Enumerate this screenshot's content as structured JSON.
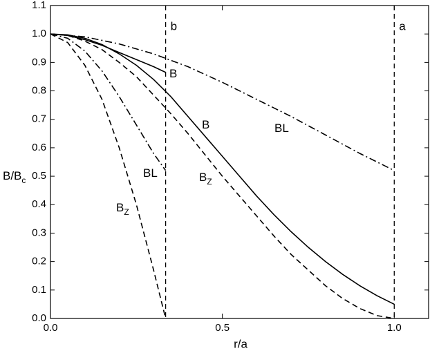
{
  "chart_data": {
    "type": "line",
    "xlabel": "r/a",
    "ylabel": {
      "text": "B/B",
      "sub": "c"
    },
    "xlim": [
      0,
      1.1
    ],
    "ylim": [
      0,
      1.1
    ],
    "xticks": [
      {
        "value": 0,
        "label": "0.0"
      },
      0.5,
      {
        "value": 1,
        "label": "1.0"
      }
    ],
    "yticks": [
      {
        "value": 0,
        "label": "0.0"
      },
      0.1,
      0.2,
      0.3,
      0.4,
      0.5,
      0.6,
      0.7,
      0.8,
      0.9,
      {
        "value": 1,
        "label": "1.0"
      },
      1.1
    ],
    "vlines": [
      {
        "value": 0.335,
        "label": "b"
      },
      {
        "value": 1.0,
        "label": "a"
      }
    ],
    "series": [
      {
        "name": "B",
        "dash": "solid",
        "color": "#000000",
        "x": [
          0,
          0.05,
          0.1,
          0.15,
          0.2,
          0.25,
          0.3,
          0.35,
          0.4,
          0.45,
          0.5,
          0.55,
          0.6,
          0.65,
          0.7,
          0.75,
          0.8,
          0.85,
          0.9,
          0.95,
          1.0
        ],
        "values": [
          1.0,
          0.997,
          0.985,
          0.963,
          0.93,
          0.89,
          0.84,
          0.78,
          0.71,
          0.64,
          0.57,
          0.5,
          0.43,
          0.365,
          0.305,
          0.25,
          0.2,
          0.155,
          0.115,
          0.08,
          0.05
        ]
      },
      {
        "name": "B",
        "sub": "Z",
        "dash": "dashed",
        "color": "#000000",
        "x": [
          0,
          0.05,
          0.1,
          0.15,
          0.2,
          0.25,
          0.3,
          0.35,
          0.4,
          0.45,
          0.5,
          0.55,
          0.6,
          0.65,
          0.7,
          0.75,
          0.8,
          0.85,
          0.9,
          0.95,
          1.0
        ],
        "values": [
          1.0,
          0.995,
          0.975,
          0.945,
          0.9,
          0.85,
          0.785,
          0.72,
          0.65,
          0.575,
          0.5,
          0.43,
          0.36,
          0.29,
          0.225,
          0.17,
          0.115,
          0.07,
          0.035,
          0.01,
          0
        ]
      },
      {
        "name": "BL",
        "dash": "dashdot",
        "color": "#000000",
        "x": [
          0,
          0.1,
          0.2,
          0.3,
          0.4,
          0.5,
          0.6,
          0.7,
          0.8,
          0.9,
          1.0
        ],
        "values": [
          1.0,
          0.99,
          0.965,
          0.93,
          0.885,
          0.83,
          0.77,
          0.71,
          0.645,
          0.58,
          0.52
        ]
      },
      {
        "name": "B",
        "dash": "solid",
        "color": "#000000",
        "x": [
          0,
          0.05,
          0.1,
          0.15,
          0.2,
          0.25,
          0.3,
          0.335
        ],
        "values": [
          1.0,
          0.995,
          0.98,
          0.96,
          0.935,
          0.91,
          0.885,
          0.865
        ]
      },
      {
        "name": "B",
        "sub": "Z",
        "dash": "dashed",
        "color": "#000000",
        "x": [
          0,
          0.05,
          0.1,
          0.15,
          0.2,
          0.25,
          0.3,
          0.335
        ],
        "values": [
          1.0,
          0.97,
          0.89,
          0.77,
          0.6,
          0.4,
          0.17,
          0
        ]
      },
      {
        "name": "BL",
        "dash": "dashdot",
        "color": "#000000",
        "x": [
          0,
          0.05,
          0.1,
          0.15,
          0.2,
          0.25,
          0.3,
          0.335
        ],
        "values": [
          1.0,
          0.985,
          0.94,
          0.87,
          0.78,
          0.68,
          0.58,
          0.52
        ]
      }
    ]
  }
}
